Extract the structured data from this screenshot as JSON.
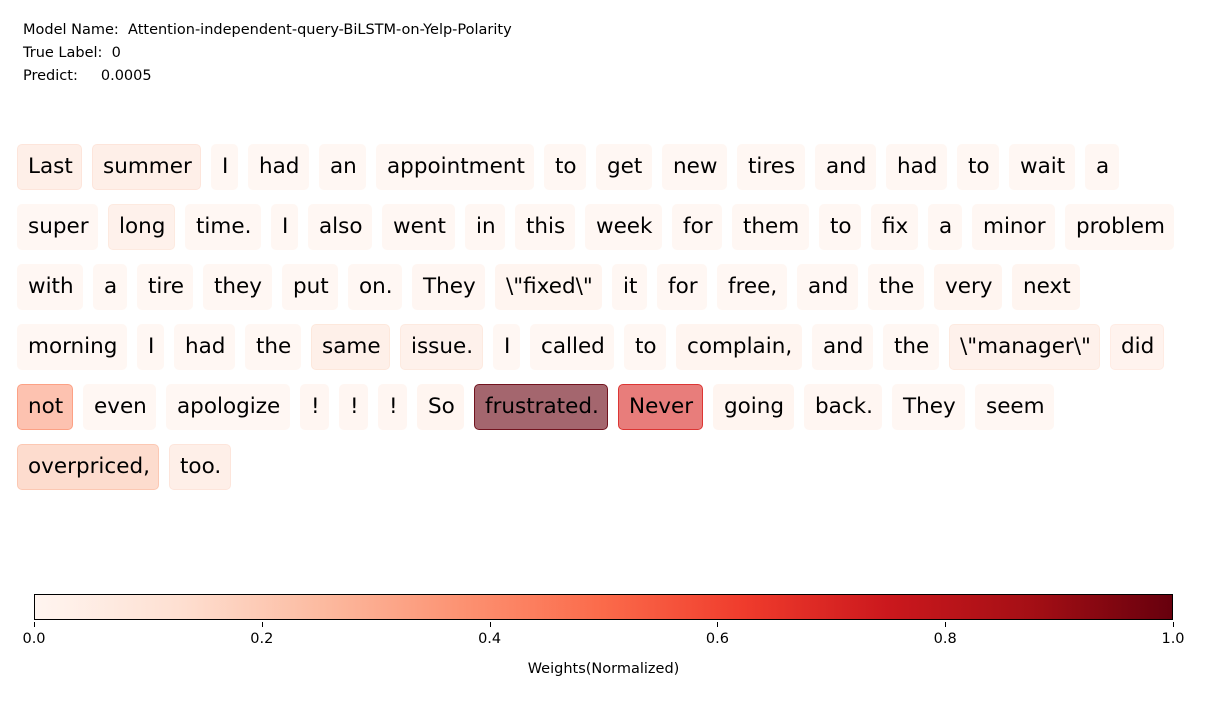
{
  "meta": {
    "model_label": "Model Name:",
    "model_value": "Attention-independent-query-BiLSTM-on-Yelp-Polarity",
    "true_label_label": "True Label:",
    "true_label_value": "0",
    "predict_label": "Predict:",
    "predict_value": "0.0005"
  },
  "chart_data": {
    "type": "heatmap",
    "tokens": [
      {
        "text": "Last",
        "weight": 0.1
      },
      {
        "text": "summer",
        "weight": 0.1
      },
      {
        "text": "I",
        "weight": 0.02
      },
      {
        "text": "had",
        "weight": 0.02
      },
      {
        "text": "an",
        "weight": 0.02
      },
      {
        "text": "appointment",
        "weight": 0.02
      },
      {
        "text": "to",
        "weight": 0.02
      },
      {
        "text": "get",
        "weight": 0.02
      },
      {
        "text": "new",
        "weight": 0.02
      },
      {
        "text": "tires",
        "weight": 0.02
      },
      {
        "text": "and",
        "weight": 0.02
      },
      {
        "text": "had",
        "weight": 0.02
      },
      {
        "text": "to",
        "weight": 0.02
      },
      {
        "text": "wait",
        "weight": 0.02
      },
      {
        "text": "a",
        "weight": 0.02
      },
      {
        "text": "super",
        "weight": 0.02
      },
      {
        "text": "long",
        "weight": 0.08
      },
      {
        "text": "time.",
        "weight": 0.02
      },
      {
        "text": "I",
        "weight": 0.02
      },
      {
        "text": "also",
        "weight": 0.02
      },
      {
        "text": "went",
        "weight": 0.02
      },
      {
        "text": "in",
        "weight": 0.02
      },
      {
        "text": "this",
        "weight": 0.02
      },
      {
        "text": "week",
        "weight": 0.02
      },
      {
        "text": "for",
        "weight": 0.02
      },
      {
        "text": "them",
        "weight": 0.02
      },
      {
        "text": "to",
        "weight": 0.02
      },
      {
        "text": "fix",
        "weight": 0.02
      },
      {
        "text": "a",
        "weight": 0.02
      },
      {
        "text": "minor",
        "weight": 0.02
      },
      {
        "text": "problem",
        "weight": 0.02
      },
      {
        "text": "with",
        "weight": 0.02
      },
      {
        "text": "a",
        "weight": 0.02
      },
      {
        "text": "tire",
        "weight": 0.02
      },
      {
        "text": "they",
        "weight": 0.02
      },
      {
        "text": "put",
        "weight": 0.02
      },
      {
        "text": "on.",
        "weight": 0.02
      },
      {
        "text": "They",
        "weight": 0.03
      },
      {
        "text": "\\\"fixed\\\"",
        "weight": 0.04
      },
      {
        "text": "it",
        "weight": 0.02
      },
      {
        "text": "for",
        "weight": 0.02
      },
      {
        "text": "free,",
        "weight": 0.02
      },
      {
        "text": "and",
        "weight": 0.02
      },
      {
        "text": "the",
        "weight": 0.02
      },
      {
        "text": "very",
        "weight": 0.04
      },
      {
        "text": "next",
        "weight": 0.04
      },
      {
        "text": "morning",
        "weight": 0.02
      },
      {
        "text": "I",
        "weight": 0.02
      },
      {
        "text": "had",
        "weight": 0.02
      },
      {
        "text": "the",
        "weight": 0.02
      },
      {
        "text": "same",
        "weight": 0.09
      },
      {
        "text": "issue.",
        "weight": 0.08
      },
      {
        "text": "I",
        "weight": 0.02
      },
      {
        "text": "called",
        "weight": 0.02
      },
      {
        "text": "to",
        "weight": 0.02
      },
      {
        "text": "complain,",
        "weight": 0.04
      },
      {
        "text": "and",
        "weight": 0.02
      },
      {
        "text": "the",
        "weight": 0.02
      },
      {
        "text": "\\\"manager\\\"",
        "weight": 0.08
      },
      {
        "text": "did",
        "weight": 0.06
      },
      {
        "text": "not",
        "weight": 0.35
      },
      {
        "text": "even",
        "weight": 0.02
      },
      {
        "text": "apologize",
        "weight": 0.02
      },
      {
        "text": "!",
        "weight": 0.03
      },
      {
        "text": "!",
        "weight": 0.03
      },
      {
        "text": "!",
        "weight": 0.03
      },
      {
        "text": "So",
        "weight": 0.04
      },
      {
        "text": "frustrated.",
        "weight": 1.0
      },
      {
        "text": "Never",
        "weight": 0.7
      },
      {
        "text": "going",
        "weight": 0.04
      },
      {
        "text": "back.",
        "weight": 0.03
      },
      {
        "text": "They",
        "weight": 0.02
      },
      {
        "text": "seem",
        "weight": 0.02
      },
      {
        "text": "overpriced,",
        "weight": 0.22
      },
      {
        "text": "too.",
        "weight": 0.1
      }
    ],
    "colorbar": {
      "label": "Weights(Normalized)",
      "range": [
        0.0,
        1.0
      ],
      "ticks": [
        "0.0",
        "0.2",
        "0.4",
        "0.6",
        "0.8",
        "1.0"
      ],
      "colormap": [
        "#fff5f0",
        "#fee0d2",
        "#fcbba1",
        "#fc9272",
        "#fb6a4a",
        "#ef3b2c",
        "#cb181d",
        "#a50f15",
        "#67000d"
      ]
    }
  }
}
